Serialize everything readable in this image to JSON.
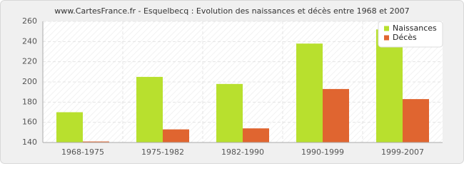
{
  "chart_data": {
    "type": "bar",
    "title": "www.CartesFrance.fr - Esquelbecq : Evolution des naissances et décès entre 1968 et 2007",
    "categories": [
      "1968-1975",
      "1975-1982",
      "1982-1990",
      "1990-1999",
      "1999-2007"
    ],
    "series": [
      {
        "name": "Naissances",
        "color": "#b8e02e",
        "values": [
          170,
          205,
          198,
          238,
          252
        ]
      },
      {
        "name": "Décès",
        "color": "#e06530",
        "values": [
          141,
          153,
          154,
          193,
          183
        ]
      }
    ],
    "ylim": [
      140,
      260
    ],
    "yticks": [
      140,
      160,
      180,
      200,
      220,
      240,
      260
    ],
    "grid": true,
    "legend": "top-right"
  }
}
